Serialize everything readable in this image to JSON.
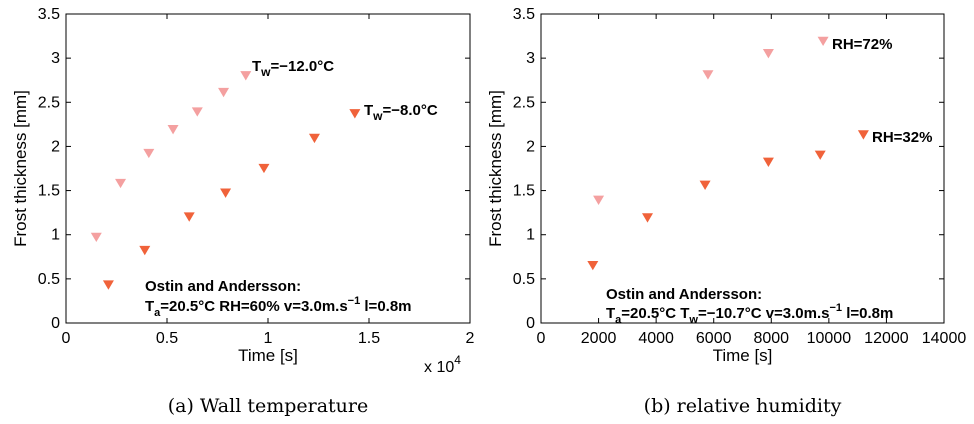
{
  "colors": {
    "series_light": "#f4a0a0",
    "series_dark": "#f0623a"
  },
  "chart_data": [
    {
      "type": "scatter",
      "marker": "triangle-down",
      "caption": "(a) Wall temperature",
      "xlabel": "Time [s]",
      "ylabel": "Frost thickness [mm]",
      "xlim": [
        0,
        20000
      ],
      "ylim": [
        0,
        3.5
      ],
      "x_ticks": [
        "0",
        "0.5",
        "1",
        "1.5",
        "2"
      ],
      "y_ticks": [
        "0",
        "0.5",
        "1",
        "1.5",
        "2",
        "2.5",
        "3",
        "3.5"
      ],
      "x_multiplier": "x 10",
      "x_multiplier_exp": "4",
      "series": [
        {
          "label_parts": [
            "T",
            "w",
            "=−12.0°C"
          ],
          "color": "#f4a0a0",
          "x": [
            1500,
            2700,
            4100,
            5300,
            6500,
            7800,
            8900
          ],
          "y": [
            0.97,
            1.58,
            1.92,
            2.19,
            2.39,
            2.61,
            2.8
          ]
        },
        {
          "label_parts": [
            "T",
            "w",
            "=−8.0°C"
          ],
          "color": "#f0623a",
          "x": [
            2100,
            3900,
            6100,
            7900,
            9800,
            12300,
            14300
          ],
          "y": [
            0.43,
            0.82,
            1.2,
            1.47,
            1.75,
            2.09,
            2.37
          ]
        }
      ],
      "annotation": {
        "line1": "Ostin and Andersson:",
        "line2_parts": [
          "T",
          "a",
          "=20.5°C RH=60% v=3.0m.s",
          "−1",
          " l=0.8m"
        ]
      }
    },
    {
      "type": "scatter",
      "marker": "triangle-down",
      "caption": "(b) relative humidity",
      "xlabel": "Time [s]",
      "ylabel": "Frost thickness [mm]",
      "xlim": [
        0,
        14000
      ],
      "ylim": [
        0,
        3.5
      ],
      "x_ticks": [
        "0",
        "2000",
        "4000",
        "6000",
        "8000",
        "10000",
        "12000",
        "14000"
      ],
      "y_ticks": [
        "0",
        "0.5",
        "1",
        "1.5",
        "2",
        "2.5",
        "3",
        "3.5"
      ],
      "series": [
        {
          "label": "RH=72%",
          "color": "#f4a0a0",
          "x": [
            2000,
            5800,
            7900,
            9800
          ],
          "y": [
            1.39,
            2.81,
            3.05,
            3.19
          ]
        },
        {
          "label": "RH=32%",
          "color": "#f0623a",
          "x": [
            1800,
            3700,
            5700,
            7900,
            9700,
            11200
          ],
          "y": [
            0.65,
            1.19,
            1.56,
            1.82,
            1.9,
            2.13
          ]
        }
      ],
      "annotation": {
        "line1": "Ostin and Andersson:",
        "line2_parts": [
          "T",
          "a",
          "=20.5°C T",
          "w",
          "=−10.7°C v=3.0m.s",
          "−1",
          " l=0.8m"
        ]
      }
    }
  ]
}
